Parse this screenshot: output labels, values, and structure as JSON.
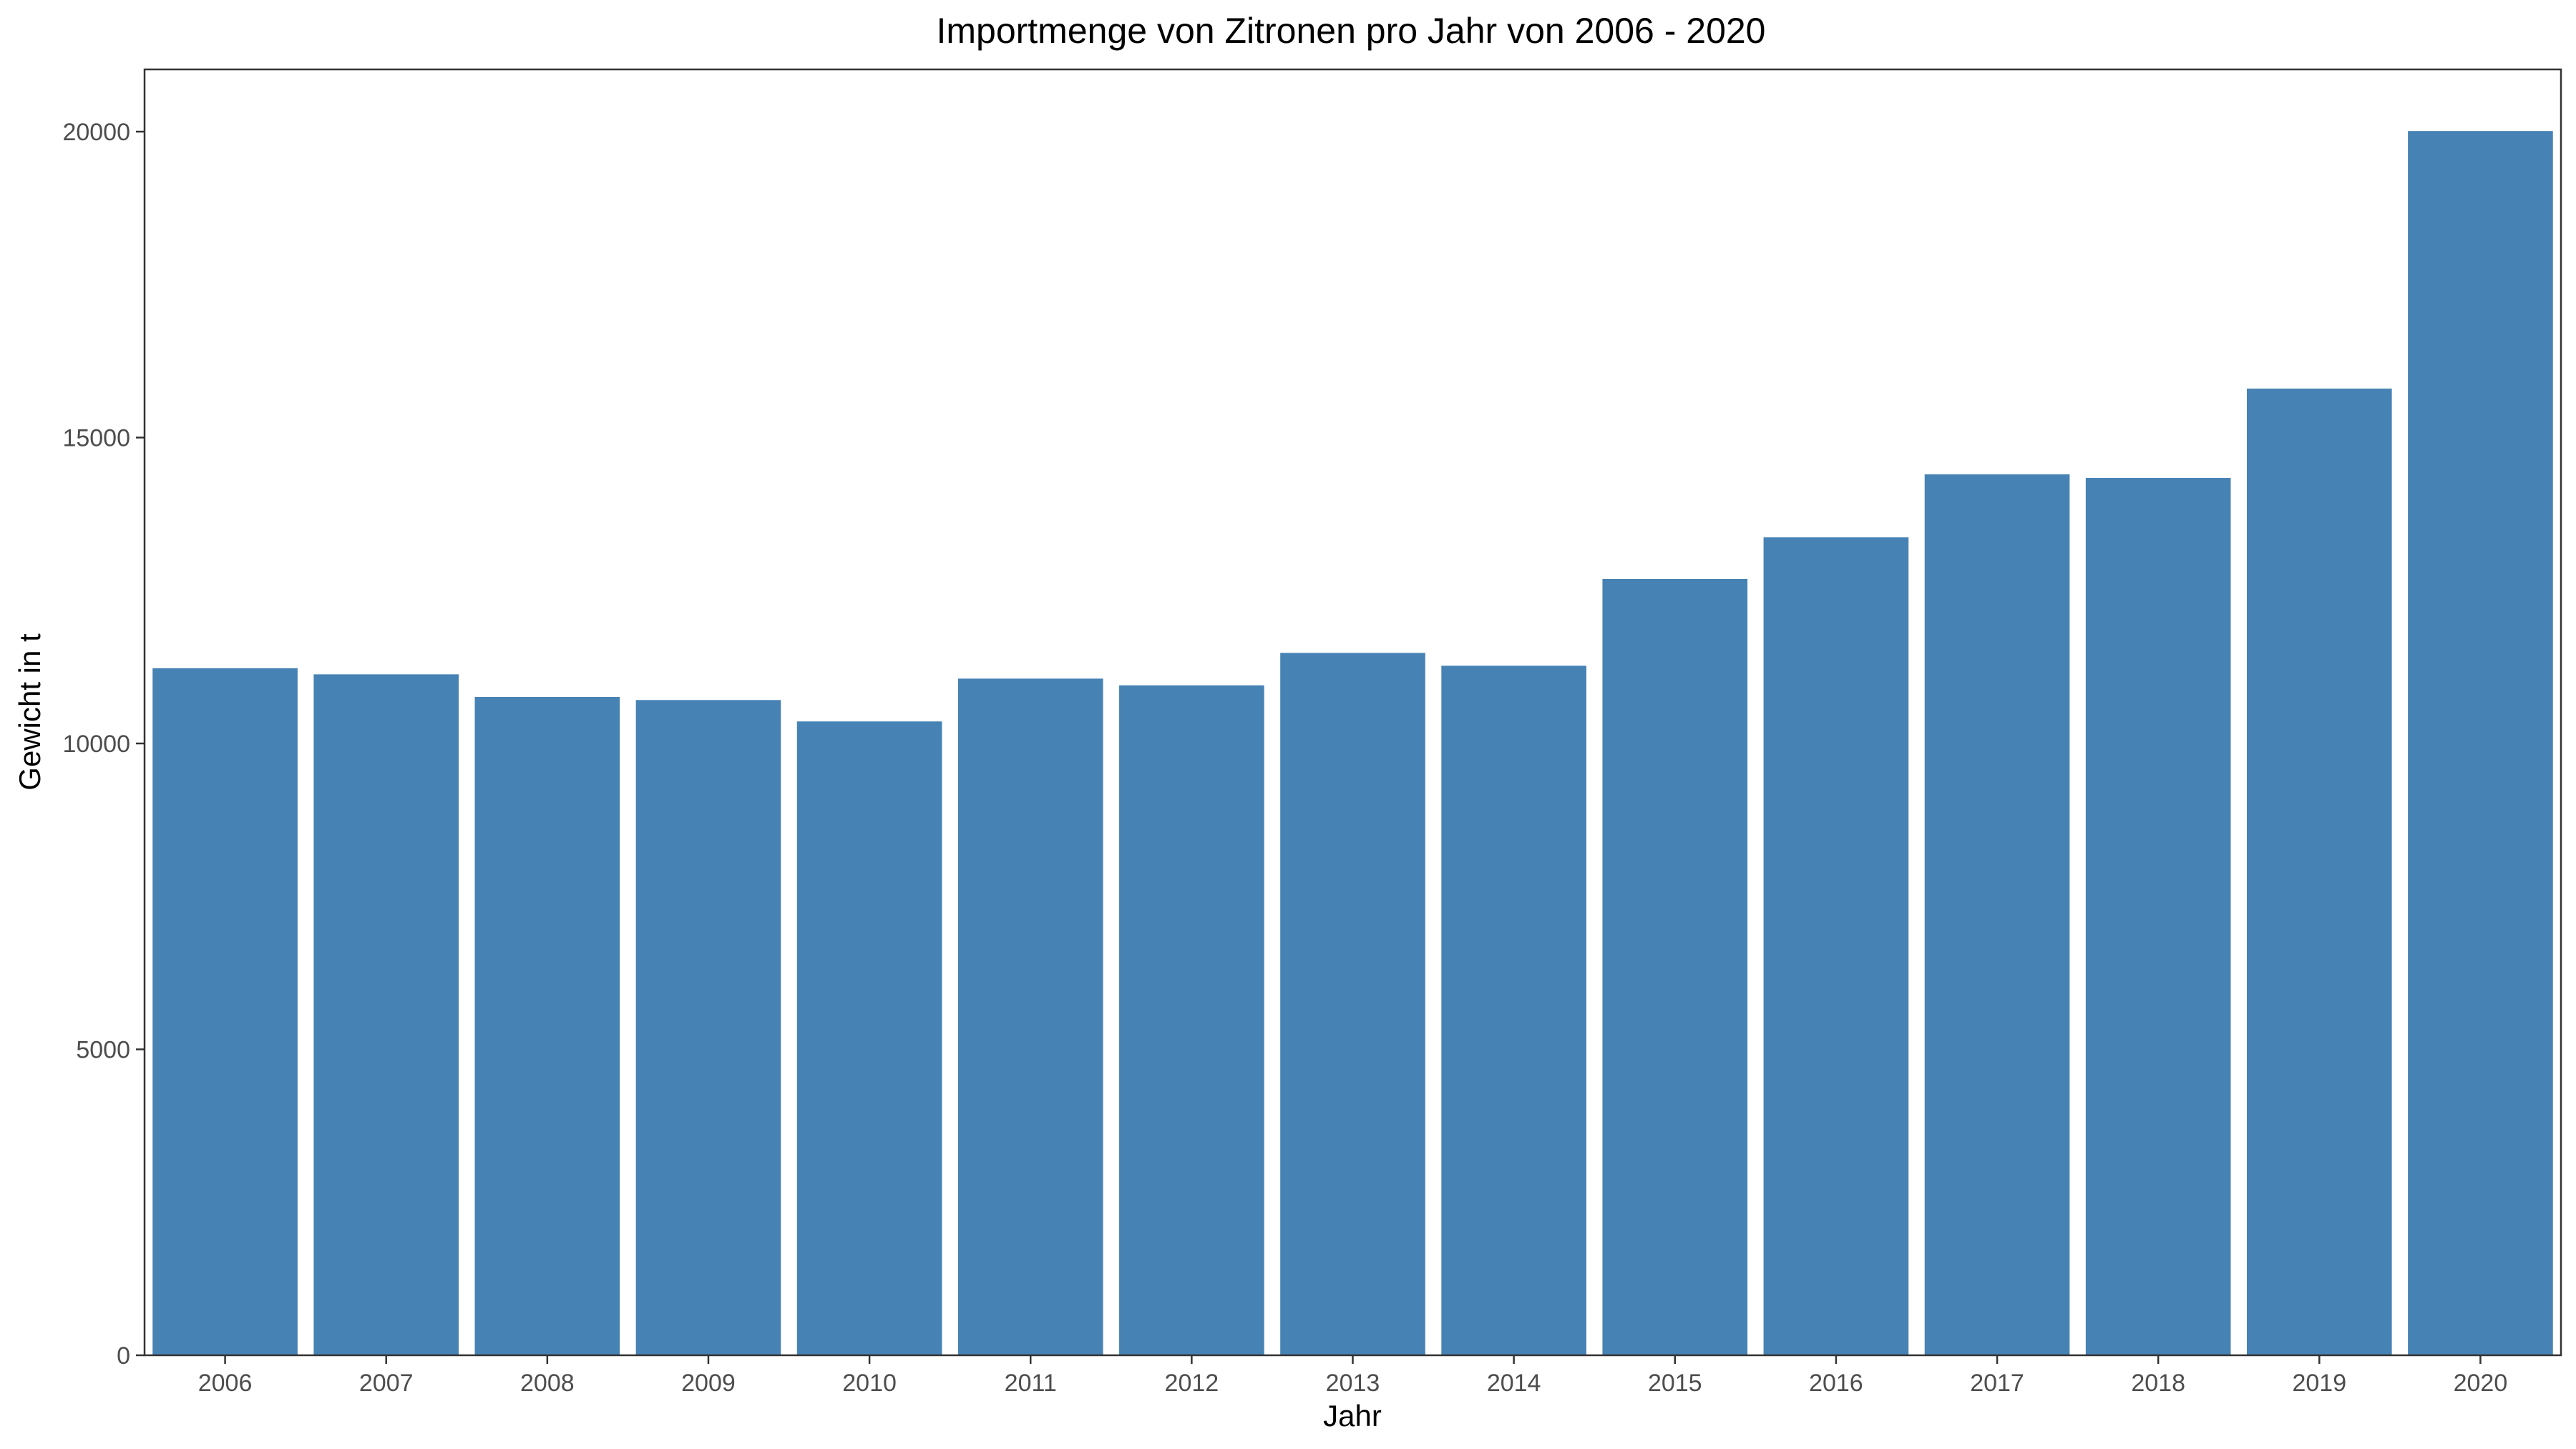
{
  "chart_data": {
    "type": "bar",
    "title": "Importmenge von Zitronen pro Jahr von 2006 - 2020",
    "xlabel": "Jahr",
    "ylabel": "Gewicht in t",
    "categories": [
      "2006",
      "2007",
      "2008",
      "2009",
      "2010",
      "2011",
      "2012",
      "2013",
      "2014",
      "2015",
      "2016",
      "2017",
      "2018",
      "2019",
      "2020"
    ],
    "values": [
      11230,
      11130,
      10760,
      10710,
      10360,
      11060,
      10950,
      11480,
      11270,
      12690,
      13370,
      14400,
      14340,
      15800,
      20010
    ],
    "ylim": [
      0,
      21000
    ],
    "yticks": [
      0,
      5000,
      10000,
      15000,
      20000
    ],
    "ytick_labels": [
      "0",
      "5000",
      "10000",
      "15000",
      "20000"
    ],
    "bar_color": "#4682B4",
    "grid": false,
    "legend": "none"
  }
}
